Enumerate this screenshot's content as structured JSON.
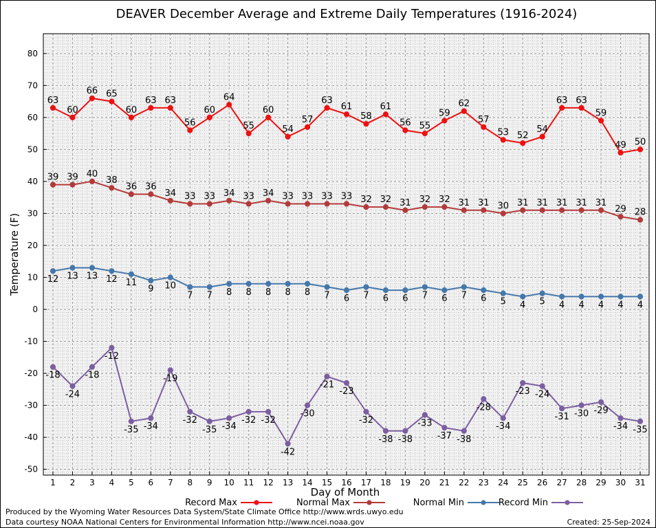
{
  "chart_data": {
    "type": "line",
    "title": "DEAVER December Average and Extreme Daily Temperatures (1916-2024)",
    "xlabel": "Day of Month",
    "ylabel": "Temperature (F)",
    "ylim": [
      -52,
      86
    ],
    "yticks": [
      -50,
      -40,
      -30,
      -20,
      -10,
      0,
      10,
      20,
      30,
      40,
      50,
      60,
      70,
      80
    ],
    "x": [
      1,
      2,
      3,
      4,
      5,
      6,
      7,
      8,
      9,
      10,
      11,
      12,
      13,
      14,
      15,
      16,
      17,
      18,
      19,
      20,
      21,
      22,
      23,
      24,
      25,
      26,
      27,
      28,
      29,
      30,
      31
    ],
    "grid": true,
    "legend_position": "bottom",
    "series": [
      {
        "name": "Record Max",
        "color": "#ee1111",
        "values": [
          63,
          60,
          66,
          65,
          60,
          63,
          63,
          56,
          60,
          64,
          55,
          60,
          54,
          57,
          63,
          61,
          58,
          61,
          56,
          55,
          59,
          62,
          57,
          53,
          52,
          54,
          63,
          63,
          59,
          49,
          50
        ]
      },
      {
        "name": "Normal Max",
        "color": "#b33a3a",
        "values": [
          39,
          39,
          40,
          38,
          36,
          36,
          34,
          33,
          33,
          34,
          33,
          34,
          33,
          33,
          33,
          33,
          32,
          32,
          31,
          32,
          32,
          31,
          31,
          30,
          31,
          31,
          31,
          31,
          31,
          29,
          28
        ]
      },
      {
        "name": "Normal Min",
        "color": "#4477aa",
        "values": [
          12,
          13,
          13,
          12,
          11,
          9,
          10,
          7,
          7,
          8,
          8,
          8,
          8,
          8,
          7,
          6,
          7,
          6,
          6,
          7,
          6,
          7,
          6,
          5,
          4,
          5,
          4,
          4,
          4,
          4,
          4
        ]
      },
      {
        "name": "Record Min",
        "color": "#7b5ea0",
        "values": [
          -18,
          -24,
          -18,
          -12,
          -35,
          -34,
          -19,
          -32,
          -35,
          -34,
          -32,
          -32,
          -42,
          -30,
          -21,
          -23,
          -32,
          -38,
          -38,
          -33,
          -37,
          -38,
          -28,
          -34,
          -23,
          -24,
          -31,
          -30,
          -29,
          -34,
          -35
        ]
      }
    ]
  },
  "footer": {
    "credit_line_1": "Produced by the Wyoming Water Resources Data System/State Climate Office http://www.wrds.uwyo.edu",
    "credit_line_2": "Data courtesy NOAA National Centers for Environmental Information http://www.ncei.noaa.gov",
    "created": "Created: 25-Sep-2024"
  }
}
